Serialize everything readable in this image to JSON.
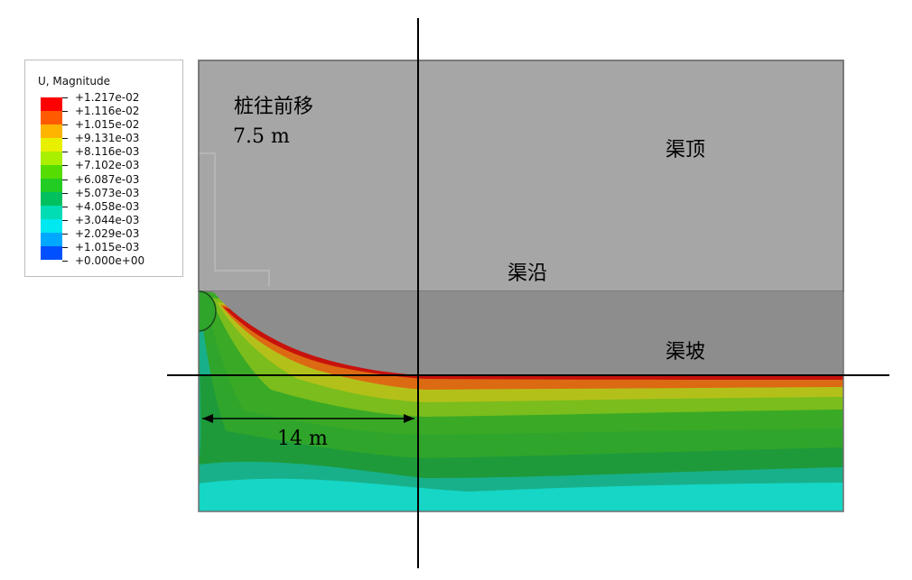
{
  "legend": {
    "title": "U, Magnitude",
    "values": [
      "+1.217e-02",
      "+1.116e-02",
      "+1.015e-02",
      "+9.131e-03",
      "+8.116e-03",
      "+7.102e-03",
      "+6.087e-03",
      "+5.073e-03",
      "+4.058e-03",
      "+3.044e-03",
      "+2.029e-03",
      "+1.015e-03",
      "+0.000e+00"
    ],
    "colors": [
      "#ff0000",
      "#ff5a00",
      "#ffb400",
      "#e8f000",
      "#aaee00",
      "#55dd00",
      "#22cc22",
      "#00c060",
      "#00dcb4",
      "#00e8f0",
      "#00a8ff",
      "#0050ff",
      "#0000ff"
    ]
  },
  "labels": {
    "pile_move_line1": "桩往前移",
    "pile_move_line2": "7.5 m",
    "channel_top": "渠顶",
    "channel_edge": "渠沿",
    "channel_slope": "渠坡",
    "distance": "14 m"
  },
  "colors": {
    "soil_upper": "#a6a6a6",
    "soil_slope": "#8c8c8c",
    "band_red": "#c8120c",
    "band_orange": "#e06a10",
    "band_yellow": "#b8c218",
    "band_lime": "#7abd1c",
    "band_green": "#32a82a",
    "band_dkgreen": "#1e9a3a",
    "band_teal": "#18b08a",
    "band_cyan": "#16d6c6"
  }
}
